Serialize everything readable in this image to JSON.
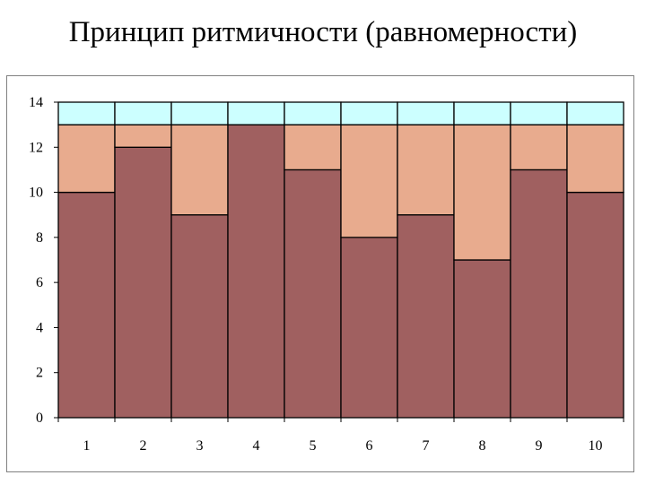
{
  "title": "Принцип ритмичности (равномерности)",
  "chart_data": {
    "type": "bar",
    "stacked": true,
    "categories": [
      "1",
      "2",
      "3",
      "4",
      "5",
      "6",
      "7",
      "8",
      "9",
      "10"
    ],
    "series": [
      {
        "values": [
          10,
          12,
          9,
          13,
          11,
          8,
          9,
          7,
          11,
          10
        ],
        "color": "#a06060"
      },
      {
        "values": [
          3,
          1,
          4,
          0,
          2,
          5,
          4,
          6,
          2,
          3
        ],
        "color": "#e8ab8e"
      },
      {
        "values": [
          1,
          1,
          1,
          1,
          1,
          1,
          1,
          1,
          1,
          1
        ],
        "color": "#ccffff"
      }
    ],
    "ylim": [
      0,
      14
    ],
    "yticks": [
      0,
      2,
      4,
      6,
      8,
      10,
      12,
      14
    ],
    "grid": false,
    "legend": "none"
  }
}
